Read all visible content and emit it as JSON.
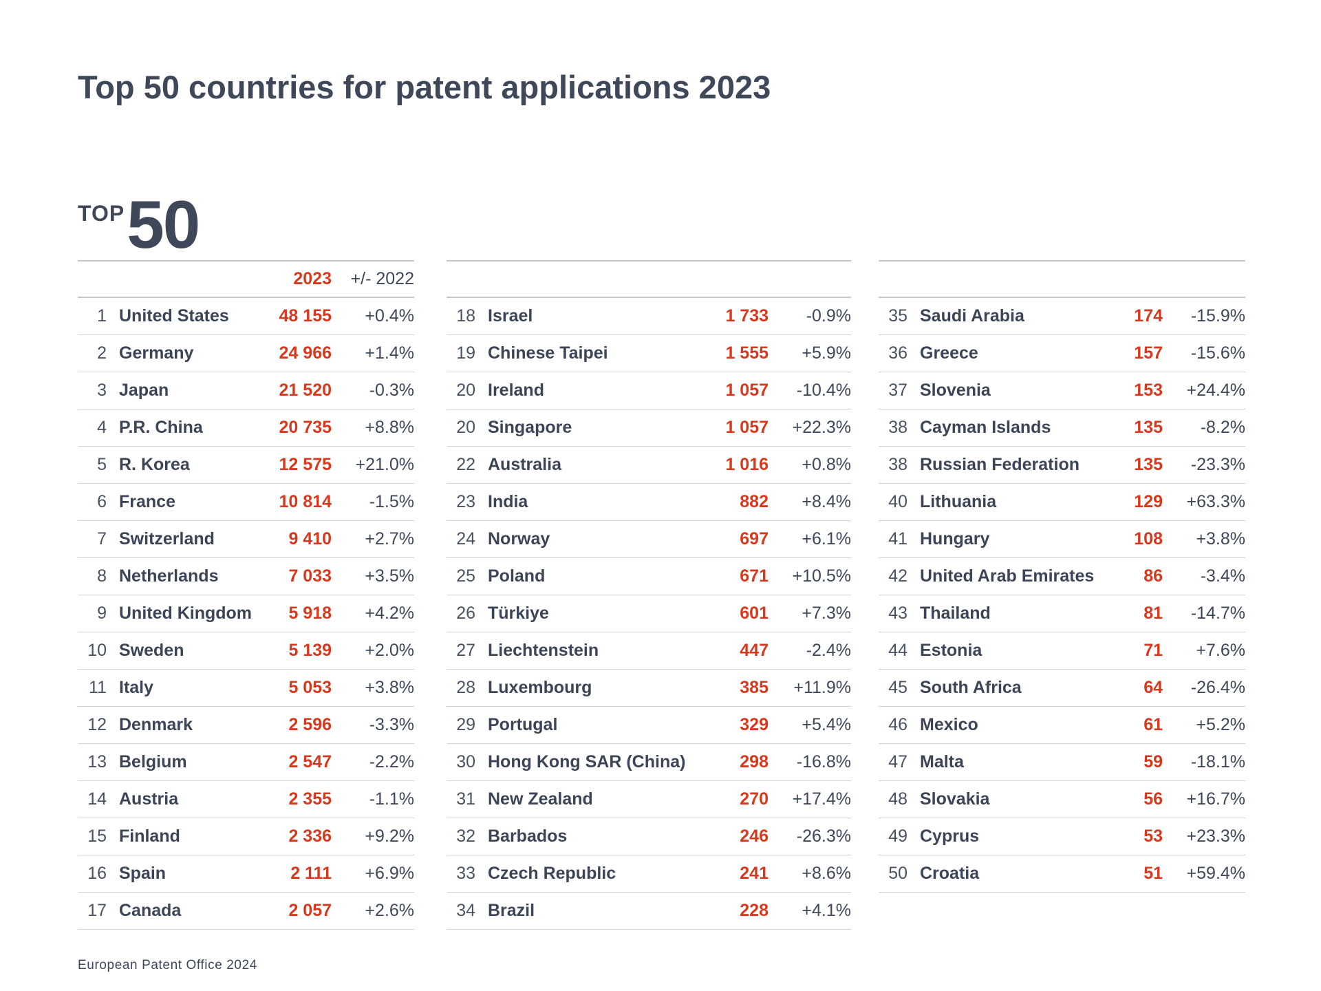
{
  "header": {
    "title": "Top 50 countries for patent applications 2023"
  },
  "logo": {
    "word": "TOP",
    "number": "50"
  },
  "table_header": {
    "year": "2023",
    "change": "+/- 2022"
  },
  "footer": {
    "text": "European Patent Office 2024"
  },
  "colors": {
    "accent_red": "#D6391E",
    "dark_slate": "#3C4557",
    "rank_gray": "#4A5361",
    "header_line": "#C4C6C8",
    "row_line": "#D2D4D6"
  },
  "chart_data": {
    "type": "table",
    "title": "Top 50 countries for patent applications 2023",
    "columns": [
      "Rank",
      "Country",
      "2023",
      "+/- 2022"
    ],
    "legend_position": "none",
    "grid": "horizontal-row-separators",
    "column_groups": [
      [
        {
          "rank": "1",
          "country": "United States",
          "value": "48 155",
          "change": "+0.4%"
        },
        {
          "rank": "2",
          "country": "Germany",
          "value": "24 966",
          "change": "+1.4%"
        },
        {
          "rank": "3",
          "country": "Japan",
          "value": "21 520",
          "change": "-0.3%"
        },
        {
          "rank": "4",
          "country": "P.R. China",
          "value": "20 735",
          "change": "+8.8%"
        },
        {
          "rank": "5",
          "country": "R. Korea",
          "value": "12 575",
          "change": "+21.0%"
        },
        {
          "rank": "6",
          "country": "France",
          "value": "10 814",
          "change": "-1.5%"
        },
        {
          "rank": "7",
          "country": "Switzerland",
          "value": "9 410",
          "change": "+2.7%"
        },
        {
          "rank": "8",
          "country": "Netherlands",
          "value": "7 033",
          "change": "+3.5%"
        },
        {
          "rank": "9",
          "country": "United Kingdom",
          "value": "5 918",
          "change": "+4.2%"
        },
        {
          "rank": "10",
          "country": "Sweden",
          "value": "5 139",
          "change": "+2.0%"
        },
        {
          "rank": "11",
          "country": "Italy",
          "value": "5 053",
          "change": "+3.8%"
        },
        {
          "rank": "12",
          "country": "Denmark",
          "value": "2 596",
          "change": "-3.3%"
        },
        {
          "rank": "13",
          "country": "Belgium",
          "value": "2 547",
          "change": "-2.2%"
        },
        {
          "rank": "14",
          "country": "Austria",
          "value": "2 355",
          "change": "-1.1%"
        },
        {
          "rank": "15",
          "country": "Finland",
          "value": "2 336",
          "change": "+9.2%"
        },
        {
          "rank": "16",
          "country": "Spain",
          "value": "2 111",
          "change": "+6.9%"
        },
        {
          "rank": "17",
          "country": "Canada",
          "value": "2 057",
          "change": "+2.6%"
        }
      ],
      [
        {
          "rank": "18",
          "country": "Israel",
          "value": "1 733",
          "change": "-0.9%"
        },
        {
          "rank": "19",
          "country": "Chinese Taipei",
          "value": "1 555",
          "change": "+5.9%"
        },
        {
          "rank": "20",
          "country": "Ireland",
          "value": "1 057",
          "change": "-10.4%"
        },
        {
          "rank": "20",
          "country": "Singapore",
          "value": "1 057",
          "change": "+22.3%"
        },
        {
          "rank": "22",
          "country": "Australia",
          "value": "1 016",
          "change": "+0.8%"
        },
        {
          "rank": "23",
          "country": "India",
          "value": "882",
          "change": "+8.4%"
        },
        {
          "rank": "24",
          "country": "Norway",
          "value": "697",
          "change": "+6.1%"
        },
        {
          "rank": "25",
          "country": "Poland",
          "value": "671",
          "change": "+10.5%"
        },
        {
          "rank": "26",
          "country": "Türkiye",
          "value": "601",
          "change": "+7.3%"
        },
        {
          "rank": "27",
          "country": "Liechtenstein",
          "value": "447",
          "change": "-2.4%"
        },
        {
          "rank": "28",
          "country": "Luxembourg",
          "value": "385",
          "change": "+11.9%"
        },
        {
          "rank": "29",
          "country": "Portugal",
          "value": "329",
          "change": "+5.4%"
        },
        {
          "rank": "30",
          "country": "Hong Kong SAR (China)",
          "value": "298",
          "change": "-16.8%"
        },
        {
          "rank": "31",
          "country": "New Zealand",
          "value": "270",
          "change": "+17.4%"
        },
        {
          "rank": "32",
          "country": "Barbados",
          "value": "246",
          "change": "-26.3%"
        },
        {
          "rank": "33",
          "country": "Czech Republic",
          "value": "241",
          "change": "+8.6%"
        },
        {
          "rank": "34",
          "country": "Brazil",
          "value": "228",
          "change": "+4.1%"
        }
      ],
      [
        {
          "rank": "35",
          "country": "Saudi Arabia",
          "value": "174",
          "change": "-15.9%"
        },
        {
          "rank": "36",
          "country": "Greece",
          "value": "157",
          "change": "-15.6%"
        },
        {
          "rank": "37",
          "country": "Slovenia",
          "value": "153",
          "change": "+24.4%"
        },
        {
          "rank": "38",
          "country": "Cayman Islands",
          "value": "135",
          "change": "-8.2%"
        },
        {
          "rank": "38",
          "country": "Russian Federation",
          "value": "135",
          "change": "-23.3%"
        },
        {
          "rank": "40",
          "country": "Lithuania",
          "value": "129",
          "change": "+63.3%"
        },
        {
          "rank": "41",
          "country": "Hungary",
          "value": "108",
          "change": "+3.8%"
        },
        {
          "rank": "42",
          "country": "United Arab Emirates",
          "value": "86",
          "change": "-3.4%"
        },
        {
          "rank": "43",
          "country": "Thailand",
          "value": "81",
          "change": "-14.7%"
        },
        {
          "rank": "44",
          "country": "Estonia",
          "value": "71",
          "change": "+7.6%"
        },
        {
          "rank": "45",
          "country": "South Africa",
          "value": "64",
          "change": "-26.4%"
        },
        {
          "rank": "46",
          "country": "Mexico",
          "value": "61",
          "change": "+5.2%"
        },
        {
          "rank": "47",
          "country": "Malta",
          "value": "59",
          "change": "-18.1%"
        },
        {
          "rank": "48",
          "country": "Slovakia",
          "value": "56",
          "change": "+16.7%"
        },
        {
          "rank": "49",
          "country": "Cyprus",
          "value": "53",
          "change": "+23.3%"
        },
        {
          "rank": "50",
          "country": "Croatia",
          "value": "51",
          "change": "+59.4%"
        }
      ]
    ]
  }
}
